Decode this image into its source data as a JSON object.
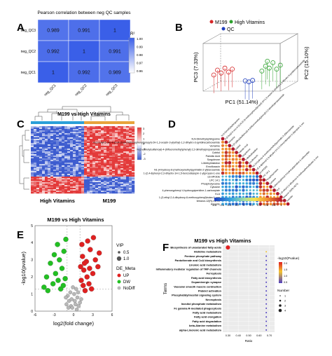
{
  "panels": {
    "A": {
      "letter": "A",
      "chart_data": {
        "type": "heatmap",
        "title": "Pearson correlation between neg QC samples",
        "rows": [
          "neg_QC3",
          "neg_QC2",
          "neg_QC1"
        ],
        "cols": [
          "neg_QC1",
          "neg_QC2",
          "neg_QC3"
        ],
        "values": [
          [
            0.989,
            0.991,
            1
          ],
          [
            0.992,
            1,
            0.991
          ],
          [
            1,
            0.992,
            0.989
          ]
        ],
        "cell_labels": [
          [
            "0.989",
            "0.991",
            "1"
          ],
          [
            "0.992",
            "1",
            "0.991"
          ],
          [
            "1",
            "0.992",
            "0.989"
          ]
        ],
        "legend_title": "R²",
        "legend_ticks": [
          "1.00",
          "0.99",
          "0.98",
          "0.97",
          "0.96"
        ],
        "colors": {
          "low": "#ffffff",
          "high": "#3a5fe8"
        }
      }
    },
    "B": {
      "letter": "B",
      "chart_data": {
        "type": "scatter",
        "legend": [
          "M199",
          "High Vitamins",
          "QC"
        ],
        "xlabel": "PC1 (51.14%)",
        "ylabel": "PC3 (7.33%)",
        "zlabel": "PC2 (15.10%)",
        "series": [
          {
            "name": "M199",
            "color": "#d62728",
            "points": [
              [
                0.1,
                0.3
              ],
              [
                0.14,
                0.4
              ],
              [
                0.18,
                0.34
              ],
              [
                0.22,
                0.44
              ],
              [
                0.26,
                0.36
              ],
              [
                0.3,
                0.42
              ]
            ]
          },
          {
            "name": "High Vitamins",
            "color": "#2ca02c",
            "points": [
              [
                0.62,
                0.38
              ],
              [
                0.66,
                0.48
              ],
              [
                0.7,
                0.44
              ],
              [
                0.74,
                0.55
              ],
              [
                0.78,
                0.42
              ],
              [
                0.82,
                0.5
              ],
              [
                0.68,
                0.58
              ]
            ]
          },
          {
            "name": "QC",
            "color": "#1f3fbf",
            "points": [
              [
                0.44,
                0.18
              ],
              [
                0.48,
                0.16
              ],
              [
                0.52,
                0.19
              ]
            ]
          }
        ],
        "colors": {
          "M199": "#d62728",
          "High Vitamins": "#2ca02c",
          "QC": "#1f3fbf"
        }
      }
    },
    "C": {
      "letter": "C",
      "chart_data": {
        "type": "heatmap",
        "title": "M199 vs High Vitamins",
        "groups": [
          "High Vitamins",
          "M199"
        ],
        "legend_ticks": [
          "3",
          "2",
          "1",
          "0",
          "-1",
          "-2",
          "-3"
        ],
        "colors": {
          "high": "#e33a3a",
          "mid": "#ffffff",
          "low": "#3d5ccf"
        }
      }
    },
    "D": {
      "letter": "D",
      "chart_data": {
        "type": "heatmap",
        "labels": [
          "N,N-Dimethylsphingosine",
          "4-(2-butyl-5-oxo-4-(2-(4-(3-(3-methoxyphenyl)propyl)-2H-1,3-oxazin-3-yl)ethyl)-1,2-dihydro-3-pyridinecarboxamide",
          "Verrarine",
          "N-[2-(dibutylsulfamoyl)-4-(trifluoromethyl)phenyl]-2,2-dimethylpropanamide",
          "Cobitol",
          "Palmitic Acid",
          "Sorgoleone",
          "1-Methylhistidine",
          "Enrofloxacin",
          "N1-(4-hydroxy-6-(methoxymethyl)pyrimidin-2-yl)benzamide",
          "1-(2,4-diphenyl-2,3-dihydro-1H-1,5-benzodiazepin-1-yl)propan-1-one",
          "13-HPODE",
          "LPC 14:1",
          "Phosphotyrosine",
          "Cytosine",
          "4-phenoxyphenyl 4-hydroxypiperidine-1-carboxylate",
          "KLA",
          "1-(3-ethyl-2,4-dihydroxy-6-methoxyphenyl)butan-1-one",
          "tetranor-12(R)-HETE",
          "Arsenite"
        ],
        "legend_ticks": [
          "-0.8",
          "-0.6",
          "-0.4",
          "-0.2",
          "0",
          "0.2",
          "0.4",
          "0.6",
          "0.8",
          "1"
        ],
        "colors": {
          "neg": "#1f3fbf",
          "zero": "#ffffff",
          "pos": "#b2182b"
        }
      }
    },
    "E": {
      "letter": "E",
      "chart_data": {
        "type": "scatter",
        "title": "M199 vs High Vitamins",
        "xlabel": "log2(fold change)",
        "ylabel": "-log10(pvalue)",
        "x_ticks": [
          "-6",
          "-3",
          "0",
          "3",
          "6"
        ],
        "y_ticks": [
          "0",
          "1",
          "2",
          "3",
          "4",
          "5"
        ],
        "xlim": [
          -6,
          6
        ],
        "ylim": [
          0,
          5
        ],
        "legend": {
          "vip_title": "VIP",
          "vip_sizes": [
            "0.5",
            "1.0"
          ],
          "de_title": "DE_Meta",
          "categories": [
            "UP",
            "DW",
            "NoDiff"
          ]
        },
        "series": [
          {
            "name": "UP",
            "color": "#e02020",
            "points": [
              [
                1.2,
                1.8
              ],
              [
                1.6,
                2.4
              ],
              [
                2.0,
                2.9
              ],
              [
                1.4,
                3.2
              ],
              [
                2.6,
                3.6
              ],
              [
                3.0,
                2.2
              ],
              [
                1.8,
                1.2
              ],
              [
                2.4,
                1.6
              ],
              [
                3.4,
                3.0
              ],
              [
                1.1,
                2.6
              ],
              [
                2.2,
                4.1
              ],
              [
                3.8,
                2.6
              ],
              [
                1.5,
                1.5
              ],
              [
                2.8,
                1.3
              ],
              [
                1.3,
                3.9
              ],
              [
                2.1,
                2.0
              ],
              [
                3.1,
                4.3
              ],
              [
                1.7,
                2.8
              ],
              [
                2.5,
                2.5
              ],
              [
                4.0,
                3.4
              ]
            ]
          },
          {
            "name": "DW",
            "color": "#22c022",
            "points": [
              [
                -1.3,
                1.9
              ],
              [
                -1.8,
                2.5
              ],
              [
                -2.2,
                3.0
              ],
              [
                -1.5,
                3.5
              ],
              [
                -2.8,
                2.2
              ],
              [
                -3.2,
                1.6
              ],
              [
                -2.0,
                1.3
              ],
              [
                -3.6,
                2.8
              ],
              [
                -1.2,
                4.2
              ],
              [
                -2.5,
                3.9
              ],
              [
                -4.0,
                1.2
              ],
              [
                -4.6,
                1.4
              ],
              [
                -1.6,
                1.5
              ],
              [
                -3.0,
                3.3
              ],
              [
                -2.4,
                1.8
              ],
              [
                -4.2,
                2.0
              ]
            ]
          },
          {
            "name": "NoDiff",
            "color": "#b8b8b8",
            "points": [
              [
                -0.4,
                0.3
              ],
              [
                0.3,
                0.4
              ],
              [
                0.6,
                0.8
              ],
              [
                -0.7,
                0.6
              ],
              [
                0.1,
                1.0
              ],
              [
                -0.2,
                0.2
              ],
              [
                0.8,
                0.3
              ],
              [
                -0.9,
                0.9
              ],
              [
                0.4,
                1.3
              ],
              [
                -0.5,
                1.1
              ],
              [
                1.0,
                0.5
              ],
              [
                -1.1,
                0.4
              ],
              [
                0.2,
                0.6
              ],
              [
                -0.3,
                0.7
              ],
              [
                0.7,
                1.1
              ],
              [
                -0.8,
                0.2
              ],
              [
                0.5,
                0.1
              ],
              [
                -0.1,
                1.4
              ],
              [
                1.2,
                0.7
              ],
              [
                -1.2,
                0.8
              ]
            ]
          }
        ],
        "colors": {
          "UP": "#e02020",
          "DW": "#22c022",
          "NoDiff": "#b8b8b8"
        }
      }
    },
    "F": {
      "letter": "F",
      "chart_data": {
        "type": "scatter",
        "title": "M199 vs High Vitamins",
        "xlabel": "Ratio",
        "ylabel": "Terms",
        "terms": [
          "Biosynthesis of unsaturated fatty acids",
          "Histidine metabolism",
          "Pentose phosphate pathway",
          "Pantothenate and CoA biosynthesis",
          "Linoleic acid metabolism",
          "Inflammatory mediator regulation of TRP channels",
          "Ferroptosis",
          "Fatty acid biosynthesis",
          "Dopaminergic synapse",
          "Vascular smooth muscle contraction",
          "Platelet activation",
          "Phosphatidylinositol signaling system",
          "Necroptosis",
          "Inositol phosphate metabolism",
          "Fc gamma R-mediated phagocytosis",
          "Fatty acid metabolism",
          "Fatty acid elongation",
          "Fatty acid degradation",
          "beta-Alanine metabolism",
          "alpha-Linolenic acid metabolism"
        ],
        "ratios": [
          0.3,
          0.67,
          0.67,
          0.67,
          0.67,
          0.67,
          0.67,
          0.67,
          0.67,
          0.67,
          0.67,
          0.67,
          0.67,
          0.67,
          0.67,
          0.67,
          0.67,
          0.67,
          0.67,
          0.67
        ],
        "x_ticks": [
          "0.30",
          "0.40",
          "0.50",
          "0.60",
          "0.70"
        ],
        "legend": {
          "p_title": "-log10(Pvalue)",
          "p_ticks": [
            "2.0",
            "1.5",
            "1.0",
            "0.5"
          ],
          "n_title": "Number",
          "n_ticks": [
            "1",
            "2",
            "3",
            "4"
          ]
        },
        "colors": {
          "high": "#e02020",
          "mid": "#f4c430",
          "low": "#5040c0"
        }
      }
    }
  }
}
